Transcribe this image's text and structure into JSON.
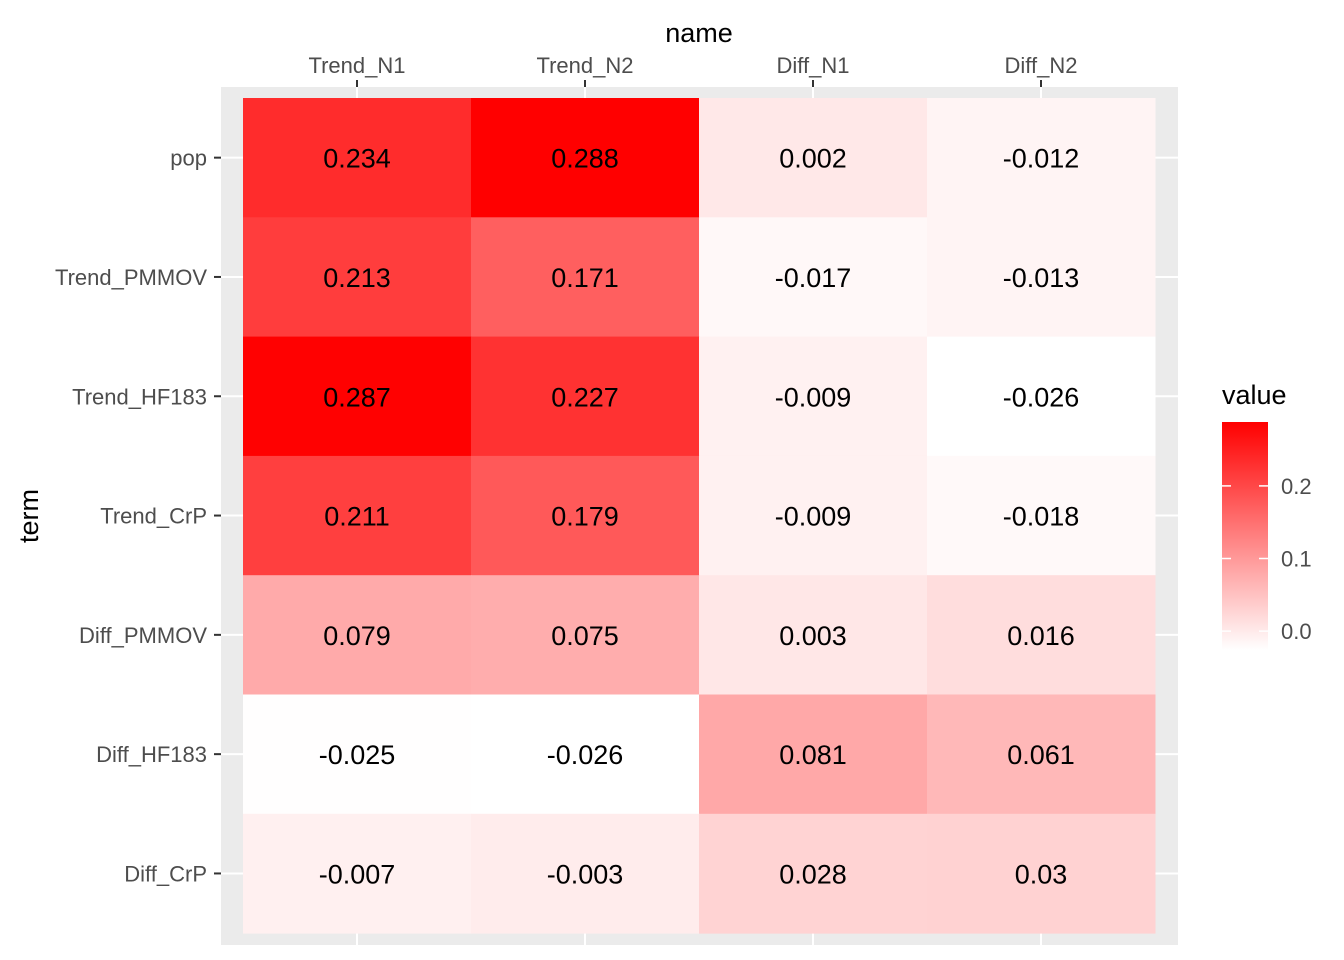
{
  "chart_data": {
    "type": "heatmap",
    "xlabel": "name",
    "ylabel": "term",
    "x_axis_position": "top",
    "columns": [
      "Trend_N1",
      "Trend_N2",
      "Diff_N1",
      "Diff_N2"
    ],
    "rows": [
      "pop",
      "Trend_PMMOV",
      "Trend_HF183",
      "Trend_CrP",
      "Diff_PMMOV",
      "Diff_HF183",
      "Diff_CrP"
    ],
    "values": [
      [
        0.234,
        0.288,
        0.002,
        -0.012
      ],
      [
        0.213,
        0.171,
        -0.017,
        -0.013
      ],
      [
        0.287,
        0.227,
        -0.009,
        -0.026
      ],
      [
        0.211,
        0.179,
        -0.009,
        -0.018
      ],
      [
        0.079,
        0.075,
        0.003,
        0.016
      ],
      [
        -0.025,
        -0.026,
        0.081,
        0.061
      ],
      [
        -0.007,
        -0.003,
        0.028,
        0.03
      ]
    ],
    "labels": [
      [
        "0.234",
        "0.288",
        "0.002",
        "-0.012"
      ],
      [
        "0.213",
        "0.171",
        "-0.017",
        "-0.013"
      ],
      [
        "0.287",
        "0.227",
        "-0.009",
        "-0.026"
      ],
      [
        "0.211",
        "0.179",
        "-0.009",
        "-0.018"
      ],
      [
        "0.079",
        "0.075",
        "0.003",
        "0.016"
      ],
      [
        "-0.025",
        "-0.026",
        "0.081",
        "0.061"
      ],
      [
        "-0.007",
        "-0.003",
        "0.028",
        "0.03"
      ]
    ],
    "legend": {
      "title": "value",
      "placement": "right",
      "low_color": "#ffffff",
      "high_color": "#ff0000",
      "range": [
        -0.026,
        0.288
      ],
      "ticks": [
        0.0,
        0.1,
        0.2
      ],
      "tick_labels": [
        "0.0",
        "0.1",
        "0.2"
      ]
    },
    "panel_background": "#ebebeb",
    "grid": true
  }
}
